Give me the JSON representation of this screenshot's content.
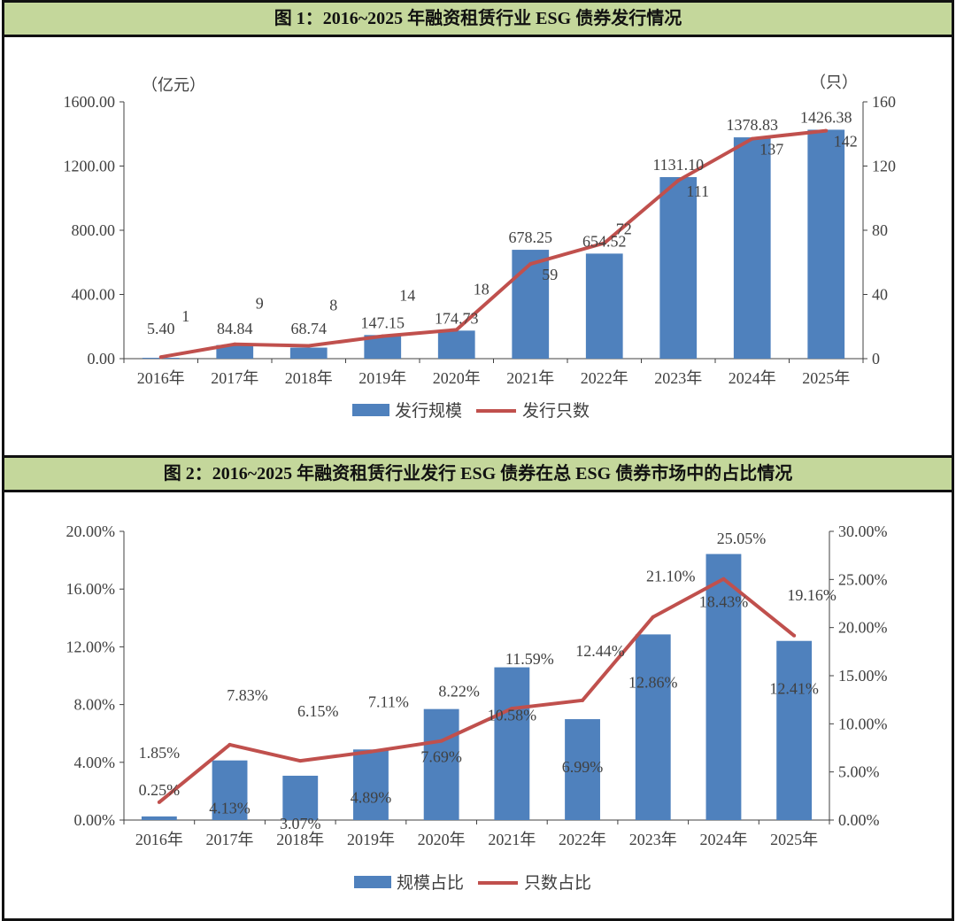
{
  "chart_data": [
    {
      "type": "bar+line",
      "title": "图 1：2016~2025 年融资租赁行业 ESG 债券发行情况",
      "categories": [
        "2016年",
        "2017年",
        "2018年",
        "2019年",
        "2020年",
        "2021年",
        "2022年",
        "2023年",
        "2024年",
        "2025年"
      ],
      "left_unit": "（亿元）",
      "right_unit": "（只）",
      "ylim_left": [
        0,
        1600
      ],
      "yticks_left": [
        "0.00",
        "400.00",
        "800.00",
        "1200.00",
        "1600.00"
      ],
      "ylim_right": [
        0,
        160
      ],
      "yticks_right": [
        "0",
        "40",
        "80",
        "120",
        "160"
      ],
      "grid": false,
      "legend": "bottom",
      "series": [
        {
          "name": "发行规模",
          "kind": "bar",
          "axis": "left",
          "color": "#4f81bd",
          "values": [
            5.4,
            84.84,
            68.74,
            147.15,
            174.73,
            678.25,
            654.52,
            1131.1,
            1378.83,
            1426.38
          ],
          "labels": [
            "5.40",
            "84.84",
            "68.74",
            "147.15",
            "174.73",
            "678.25",
            "654.52",
            "1131.10",
            "1378.83",
            "1426.38"
          ]
        },
        {
          "name": "发行只数",
          "kind": "line",
          "axis": "right",
          "color": "#c0504d",
          "values": [
            1,
            9,
            8,
            14,
            18,
            59,
            72,
            111,
            137,
            142
          ],
          "labels": [
            "1",
            "9",
            "8",
            "14",
            "18",
            "59",
            "72",
            "111",
            "137",
            "142"
          ]
        }
      ]
    },
    {
      "type": "bar+line",
      "title": "图 2：2016~2025 年融资租赁行业发行 ESG 债券在总 ESG 债券市场中的占比情况",
      "categories": [
        "2016年",
        "2017年",
        "2018年",
        "2019年",
        "2020年",
        "2021年",
        "2022年",
        "2023年",
        "2024年",
        "2025年"
      ],
      "ylim_left": [
        0,
        20
      ],
      "yticks_left": [
        "0.00%",
        "4.00%",
        "8.00%",
        "12.00%",
        "16.00%",
        "20.00%"
      ],
      "ylim_right": [
        0,
        30
      ],
      "yticks_right": [
        "0.00%",
        "5.00%",
        "10.00%",
        "15.00%",
        "20.00%",
        "25.00%",
        "30.00%"
      ],
      "grid": false,
      "legend": "bottom",
      "series": [
        {
          "name": "规模占比",
          "kind": "bar",
          "axis": "left",
          "color": "#4f81bd",
          "values": [
            0.25,
            4.13,
            3.07,
            4.89,
            7.69,
            10.58,
            6.99,
            12.86,
            18.43,
            12.41
          ],
          "labels": [
            "0.25%",
            "4.13%",
            "3.07%",
            "4.89%",
            "7.69%",
            "10.58%",
            "6.99%",
            "12.86%",
            "18.43%",
            "12.41%"
          ]
        },
        {
          "name": "只数占比",
          "kind": "line",
          "axis": "right",
          "color": "#c0504d",
          "values": [
            1.85,
            7.83,
            6.15,
            7.11,
            8.22,
            11.59,
            12.44,
            21.1,
            25.05,
            19.16
          ],
          "labels": [
            "1.85%",
            "7.83%",
            "6.15%",
            "7.11%",
            "8.22%",
            "11.59%",
            "12.44%",
            "21.10%",
            "25.05%",
            "19.16%"
          ]
        }
      ]
    }
  ]
}
